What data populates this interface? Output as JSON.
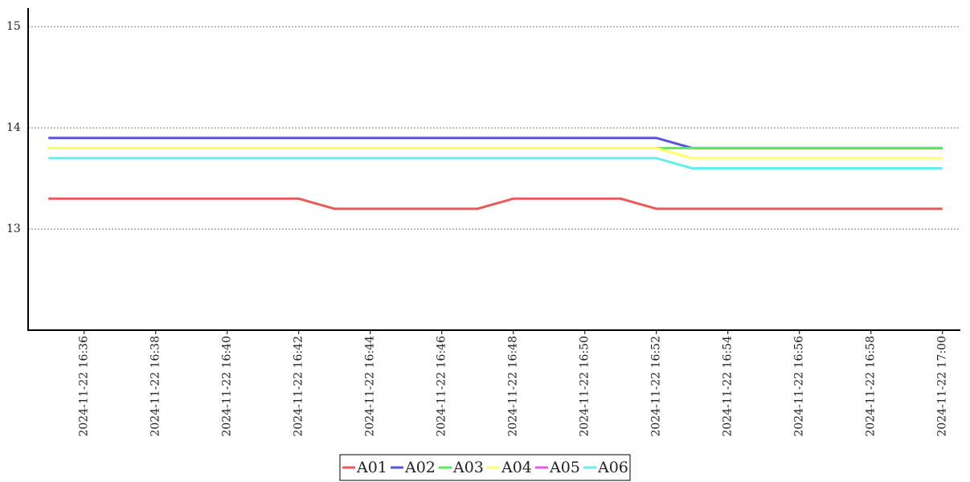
{
  "chart_data": {
    "type": "line",
    "x": [
      "2024-11-22 16:35",
      "2024-11-22 16:36",
      "2024-11-22 16:37",
      "2024-11-22 16:38",
      "2024-11-22 16:39",
      "2024-11-22 16:40",
      "2024-11-22 16:41",
      "2024-11-22 16:42",
      "2024-11-22 16:43",
      "2024-11-22 16:44",
      "2024-11-22 16:45",
      "2024-11-22 16:46",
      "2024-11-22 16:47",
      "2024-11-22 16:48",
      "2024-11-22 16:49",
      "2024-11-22 16:50",
      "2024-11-22 16:51",
      "2024-11-22 16:52",
      "2024-11-22 16:53",
      "2024-11-22 16:54",
      "2024-11-22 16:55",
      "2024-11-22 16:56",
      "2024-11-22 16:57",
      "2024-11-22 16:58",
      "2024-11-22 16:59",
      "2024-11-22 17:00"
    ],
    "series": [
      {
        "name": "A01",
        "color": "#e95b5b",
        "values": [
          13.3,
          13.3,
          13.3,
          13.3,
          13.3,
          13.3,
          13.3,
          13.3,
          13.2,
          13.2,
          13.2,
          13.2,
          13.2,
          13.3,
          13.3,
          13.3,
          13.3,
          13.2,
          13.2,
          13.2,
          13.2,
          13.2,
          13.2,
          13.2,
          13.2,
          13.2
        ]
      },
      {
        "name": "A02",
        "color": "#5555dd",
        "values": [
          13.9,
          13.9,
          13.9,
          13.9,
          13.9,
          13.9,
          13.9,
          13.9,
          13.9,
          13.9,
          13.9,
          13.9,
          13.9,
          13.9,
          13.9,
          13.9,
          13.9,
          13.9,
          13.8,
          13.8,
          13.8,
          13.8,
          13.8,
          13.8,
          13.8,
          13.8
        ]
      },
      {
        "name": "A03",
        "color": "#55ee55",
        "values": [
          13.8,
          13.8,
          13.8,
          13.8,
          13.8,
          13.8,
          13.8,
          13.8,
          13.8,
          13.8,
          13.8,
          13.8,
          13.8,
          13.8,
          13.8,
          13.8,
          13.8,
          13.8,
          13.8,
          13.8,
          13.8,
          13.8,
          13.8,
          13.8,
          13.8,
          13.8
        ]
      },
      {
        "name": "A04",
        "color": "#ffff66",
        "values": [
          13.8,
          13.8,
          13.8,
          13.8,
          13.8,
          13.8,
          13.8,
          13.8,
          13.8,
          13.8,
          13.8,
          13.8,
          13.8,
          13.8,
          13.8,
          13.8,
          13.8,
          13.8,
          13.7,
          13.7,
          13.7,
          13.7,
          13.7,
          13.7,
          13.7,
          13.7
        ]
      },
      {
        "name": "A05",
        "color": "#ee55ee",
        "values": [
          null,
          null,
          null,
          null,
          null,
          null,
          null,
          null,
          null,
          null,
          null,
          null,
          null,
          null,
          null,
          null,
          null,
          null,
          null,
          null,
          null,
          null,
          null,
          null,
          null,
          null
        ]
      },
      {
        "name": "A06",
        "color": "#66eeee",
        "values": [
          13.7,
          13.7,
          13.7,
          13.7,
          13.7,
          13.7,
          13.7,
          13.7,
          13.7,
          13.7,
          13.7,
          13.7,
          13.7,
          13.7,
          13.7,
          13.7,
          13.7,
          13.7,
          13.6,
          13.6,
          13.6,
          13.6,
          13.6,
          13.6,
          13.6,
          13.6
        ]
      }
    ],
    "xlim": [
      "2024-11-22 16:34:26",
      "2024-11-22 17:00:30"
    ],
    "xticks": [
      "2024-11-22 16:36",
      "2024-11-22 16:38",
      "2024-11-22 16:40",
      "2024-11-22 16:42",
      "2024-11-22 16:44",
      "2024-11-22 16:46",
      "2024-11-22 16:48",
      "2024-11-22 16:50",
      "2024-11-22 16:52",
      "2024-11-22 16:54",
      "2024-11-22 16:56",
      "2024-11-22 16:58",
      "2024-11-22 17:00"
    ],
    "ylim": [
      12,
      15.2
    ],
    "yticks": [
      13,
      14,
      15
    ],
    "grid": true,
    "legend": "bottom"
  }
}
